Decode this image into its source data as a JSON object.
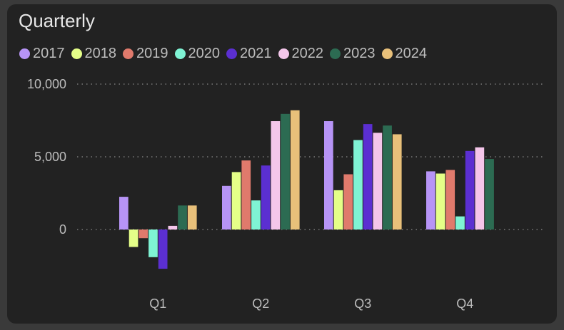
{
  "chart_data": {
    "type": "bar",
    "title": "Quarterly",
    "categories": [
      "Q1",
      "Q2",
      "Q3",
      "Q4"
    ],
    "ylim": [
      -3000,
      10000
    ],
    "yticks": [
      0,
      5000,
      10000
    ],
    "ytick_labels": [
      "0",
      "5,000",
      "10,000"
    ],
    "grid": true,
    "legend_position": "top-left",
    "series": [
      {
        "name": "2017",
        "color": "#b794f6",
        "values": [
          2250,
          3000,
          7450,
          4000
        ]
      },
      {
        "name": "2018",
        "color": "#e5ff88",
        "values": [
          -1200,
          3950,
          2700,
          3850
        ]
      },
      {
        "name": "2019",
        "color": "#e07a6c",
        "values": [
          -600,
          4750,
          3800,
          4100
        ]
      },
      {
        "name": "2020",
        "color": "#7ff3d4",
        "values": [
          -1900,
          2000,
          6150,
          900
        ]
      },
      {
        "name": "2021",
        "color": "#5b2fd1",
        "values": [
          -2700,
          4400,
          7250,
          5400
        ]
      },
      {
        "name": "2022",
        "color": "#f4c6ea",
        "values": [
          250,
          7450,
          6650,
          5650
        ]
      },
      {
        "name": "2023",
        "color": "#2c6b52",
        "values": [
          1650,
          7950,
          7150,
          4850
        ]
      },
      {
        "name": "2024",
        "color": "#e8c07a",
        "values": [
          1650,
          8200,
          6550,
          null
        ]
      }
    ]
  }
}
